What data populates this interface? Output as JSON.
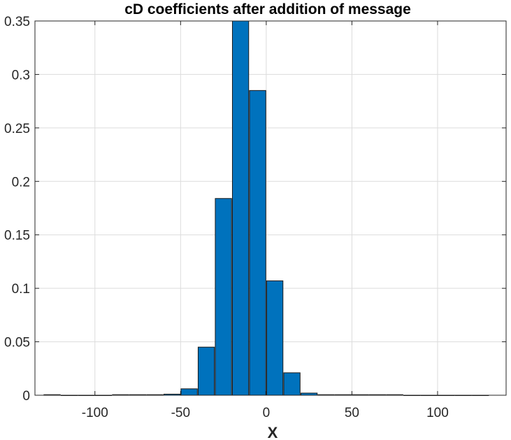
{
  "chart_data": {
    "type": "bar",
    "title": "cD coefficients after addition of message",
    "xlabel": "X",
    "ylabel": "",
    "xlim": [
      -135,
      140
    ],
    "ylim": [
      0,
      0.35
    ],
    "grid": true,
    "bar_color": "#0072BD",
    "bar_width": 9.5,
    "xticks": [
      -100,
      -50,
      0,
      50,
      100
    ],
    "yticks": [
      0,
      0.05,
      0.1,
      0.15,
      0.2,
      0.25,
      0.3,
      0.35
    ],
    "xtick_labels": [
      "-100",
      "-50",
      "0",
      "50",
      "100"
    ],
    "ytick_labels": [
      "0",
      "0.05",
      "0.1",
      "0.15",
      "0.2",
      "0.25",
      "0.3",
      "0.35"
    ],
    "x": [
      -125,
      -115,
      -105,
      -95,
      -85,
      -75,
      -65,
      -55,
      -45,
      -35,
      -25,
      -15,
      -5,
      5,
      15,
      25,
      35,
      45,
      55,
      65,
      75,
      85,
      95,
      105,
      115,
      125
    ],
    "values": [
      0.0005,
      0,
      0,
      0,
      0.0005,
      0.0005,
      0.0005,
      0.001,
      0.006,
      0.045,
      0.184,
      0.35,
      0.285,
      0.107,
      0.021,
      0.002,
      0.0005,
      0.0005,
      0.0005,
      0.0005,
      0.0005,
      0,
      0,
      0,
      0,
      0
    ]
  }
}
